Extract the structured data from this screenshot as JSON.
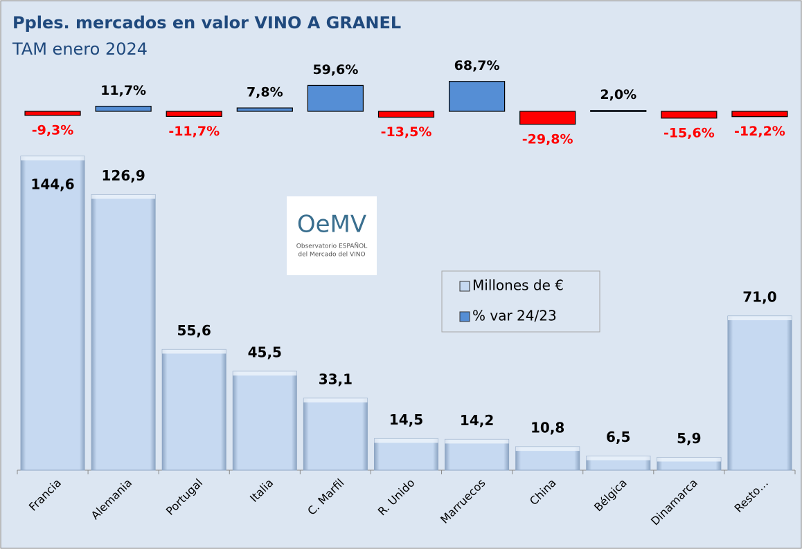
{
  "chart_data": {
    "type": "bar",
    "title": "Pples. mercados en valor VINO A GRANEL",
    "subtitle": "TAM enero 2024",
    "categories": [
      "Francia",
      "Alemania",
      "Portugal",
      "Italia",
      "C. Marfil",
      "R. Unido",
      "Marruecos",
      "China",
      "Bélgica",
      "Dinamarca",
      "Resto…"
    ],
    "series": [
      {
        "name": "Millones de €",
        "color": "#c6d9f1",
        "values": [
          144.6,
          126.9,
          55.6,
          45.5,
          33.1,
          14.5,
          14.2,
          10.8,
          6.5,
          5.9,
          71.0
        ],
        "value_labels": [
          "144,6",
          "126,9",
          "55,6",
          "45,5",
          "33,1",
          "14,5",
          "14,2",
          "10,8",
          "6,5",
          "5,9",
          "71,0"
        ]
      },
      {
        "name": "% var 24/23",
        "color": "#558ed5",
        "negative_color": "#ff0000",
        "axis": "y2",
        "values": [
          -9.3,
          11.7,
          -11.7,
          7.8,
          59.6,
          -13.5,
          68.7,
          -29.8,
          2.0,
          -15.6,
          -12.2
        ],
        "value_labels": [
          "-9,3%",
          "11,7%",
          "-11,7%",
          "7,8%",
          "59,6%",
          "-13,5%",
          "68,7%",
          "-29,8%",
          "2,0%",
          "-15,6%",
          "-12,2%"
        ]
      }
    ],
    "ylim": [
      0,
      150
    ],
    "y2lim": [
      -60,
      80
    ]
  },
  "logo": {
    "name": "OeMV",
    "tagline": [
      "Observatorio ESPAÑOL",
      "del Mercado del VINO"
    ]
  }
}
